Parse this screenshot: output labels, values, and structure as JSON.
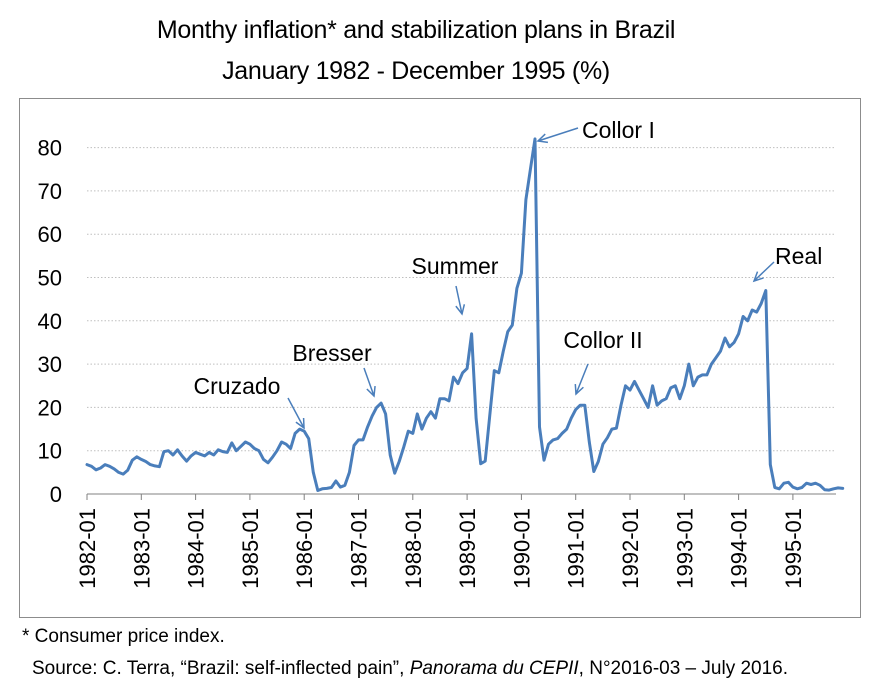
{
  "title_line1": "Monthy inflation* and stabilization plans in Brazil",
  "title_line2": "January 1982 - December 1995 (%)",
  "footnote": "* Consumer price index.",
  "source": {
    "prefix": "Source: C. Terra, “Brazil: self-inflected pain”, ",
    "italic": "Panorama du CEPII",
    "suffix": ", N°2016-03 – July 2016."
  },
  "colors": {
    "line": "#4a7ebb",
    "grid": "#bfbfbf",
    "frame": "#8c8c8c"
  },
  "chart_data": {
    "type": "line",
    "y_ticks": [
      0,
      10,
      20,
      30,
      40,
      50,
      60,
      70,
      80
    ],
    "ylim": [
      0,
      85
    ],
    "x_tick_labels": [
      "1982-01",
      "1983-01",
      "1984-01",
      "1985-01",
      "1986-01",
      "1987-01",
      "1988-01",
      "1989-01",
      "1990-01",
      "1991-01",
      "1992-01",
      "1993-01",
      "1994-01",
      "1995-01"
    ],
    "grid": "horizontal dashed",
    "series": [
      {
        "start": "1982-01",
        "values": [
          6.8,
          6.4,
          5.6,
          6.0,
          6.8,
          6.4,
          5.8,
          5.0,
          4.6,
          5.5,
          7.8,
          8.6,
          8.0,
          7.5,
          6.8,
          6.5,
          6.3,
          9.8,
          10.0,
          9.0,
          10.2,
          8.8,
          7.6,
          8.8,
          9.6,
          9.2,
          8.8,
          9.6,
          9.0,
          10.2,
          9.8,
          9.6,
          11.8,
          10.0,
          11.0,
          12.0,
          11.5,
          10.5,
          10.0,
          8.0,
          7.2,
          8.5,
          10.0,
          12.0,
          11.5,
          10.5,
          14.0,
          15.0,
          14.5,
          12.8,
          5.0,
          0.8,
          1.2,
          1.3,
          1.5,
          3.0,
          1.6,
          2.0,
          5.0,
          11.2,
          12.5,
          12.5,
          15.5,
          18.0,
          20.0,
          21.0,
          18.5,
          9.0,
          4.8,
          7.5,
          10.8,
          14.5,
          14.0,
          18.5,
          15.0,
          17.5,
          19.0,
          17.5,
          22.0,
          22.0,
          21.5,
          27.0,
          25.5,
          28.0,
          29.0,
          37.0,
          17.5,
          7.0,
          7.6,
          18.0,
          28.5,
          28.0,
          33.0,
          37.5,
          39.0,
          47.5,
          51.0,
          68.0,
          75.0,
          82.0,
          15.5,
          7.8,
          11.5,
          12.5,
          12.8,
          14.0,
          15.0,
          17.5,
          19.5,
          20.5,
          20.5,
          12.0,
          5.2,
          7.5,
          11.5,
          13.0,
          15.0,
          15.2,
          20.5,
          25.0,
          24.0,
          26.0,
          24.0,
          22.0,
          20.0,
          25.0,
          20.5,
          21.5,
          22.0,
          24.5,
          25.0,
          22.0,
          25.0,
          30.0,
          25.0,
          27.0,
          27.5,
          27.5,
          30.0,
          31.5,
          33.0,
          36.0,
          34.0,
          35.0,
          37.0,
          41.0,
          40.0,
          42.5,
          42.0,
          44.0,
          47.0,
          6.8,
          1.5,
          1.2,
          2.5,
          2.7,
          1.6,
          1.2,
          1.5,
          2.5,
          2.2,
          2.5,
          2.0,
          1.0,
          0.9,
          1.2,
          1.4,
          1.3
        ]
      }
    ],
    "annotations": [
      {
        "text": "Cruzado",
        "target": "1986-02",
        "value": 13.5
      },
      {
        "text": "Bresser",
        "target": "1987-06",
        "value": 21.0
      },
      {
        "text": "Summer",
        "target": "1989-01",
        "value": 38.0
      },
      {
        "text": "Collor I",
        "target": "1990-03",
        "value": 82.0
      },
      {
        "text": "Collor II",
        "target": "1991-02",
        "value": 22.5
      },
      {
        "text": "Real",
        "target": "1994-06",
        "value": 48.0
      }
    ]
  }
}
